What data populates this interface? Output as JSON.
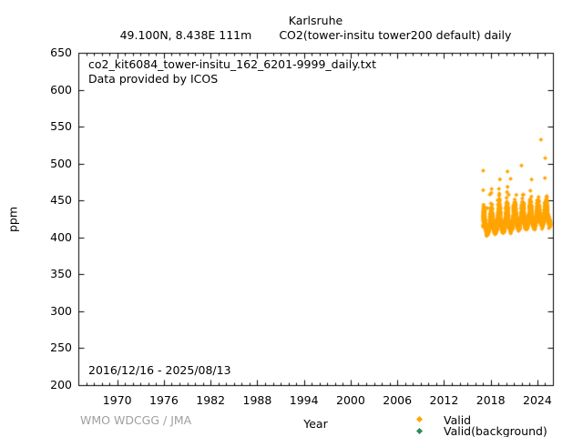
{
  "header": {
    "station": "Karlsruhe",
    "location": "49.100N, 8.438E 111m",
    "dataset": "CO2(tower-insitu tower200 default) daily"
  },
  "annotations": {
    "source_file": "co2_kit6084_tower-insitu_162_6201-9999_daily.txt",
    "provider": "Data provided by ICOS",
    "date_range": "2016/12/16 - 2025/08/13",
    "credit": "WMO WDCGG / JMA"
  },
  "axes": {
    "xlabel": "Year",
    "ylabel": "ppm",
    "x_range": [
      1965,
      2026
    ],
    "y_range": [
      200,
      650
    ],
    "x_major_ticks": [
      1970,
      1976,
      1982,
      1988,
      1994,
      2000,
      2006,
      2012,
      2018,
      2024
    ],
    "x_minor_step": 1,
    "y_major_ticks": [
      200,
      250,
      300,
      350,
      400,
      450,
      500,
      550,
      600,
      650
    ]
  },
  "legend": {
    "items": [
      {
        "label": "Valid",
        "color": "#FFA500",
        "symbol": "diamond-icon"
      },
      {
        "label": "Valid(background)",
        "color": "#2E8B57",
        "symbol": "diamond-icon"
      }
    ]
  },
  "chart_data": {
    "type": "scatter",
    "title": "Karlsruhe CO2 (tower-insitu tower200 default) daily",
    "xlabel": "Year",
    "ylabel": "ppm",
    "x_range": [
      1965,
      2026
    ],
    "y_range": [
      200,
      650
    ],
    "grid": false,
    "legend_position": "bottom-right-outside",
    "summary": {
      "observation_period": "2016/12/16 - 2025/08/13",
      "approx_min_ppm": 396,
      "approx_max_ppm": 533,
      "typical_band_ppm": [
        405,
        465
      ],
      "pattern": "dense daily scatter, winter maxima and summer minima, rising trend"
    },
    "series": [
      {
        "name": "Valid",
        "color": "#FFA500",
        "marker": "filled-diamond",
        "marker_px": 2.4,
        "gen": {
          "seed": 20250813,
          "t_start": 2016.958,
          "t_end": 2025.617,
          "samples_per_year": 365.25,
          "base_ppm": 405,
          "base_year": 2017.0,
          "trend_ppm_per_year": 1.55,
          "season_amp_ppm": 7,
          "season_peak_frac": 0.04,
          "sigma_base_ppm": 6,
          "sigma_winter_extra_ppm": 8,
          "ar1": 0.75,
          "ar_input_scale": 0.4,
          "daily_scale": 0.35,
          "jitter_ppm": 1.5,
          "winter_spike_prob": 0.012,
          "winter_spike_ppm": [
            12,
            40
          ],
          "rare_spike_prob": 0.0015,
          "rare_spike_ppm": [
            30,
            70
          ]
        },
        "outliers": [
          [
            2016.98,
            491
          ],
          [
            2020.1,
            490
          ],
          [
            2020.5,
            480
          ],
          [
            2021.9,
            498
          ],
          [
            2023.2,
            479
          ],
          [
            2024.4,
            533
          ],
          [
            2024.95,
            508
          ]
        ]
      },
      {
        "name": "Valid(background)",
        "color": "#2E8B57",
        "marker": "filled-diamond",
        "marker_px": 2.4,
        "points": []
      }
    ]
  }
}
